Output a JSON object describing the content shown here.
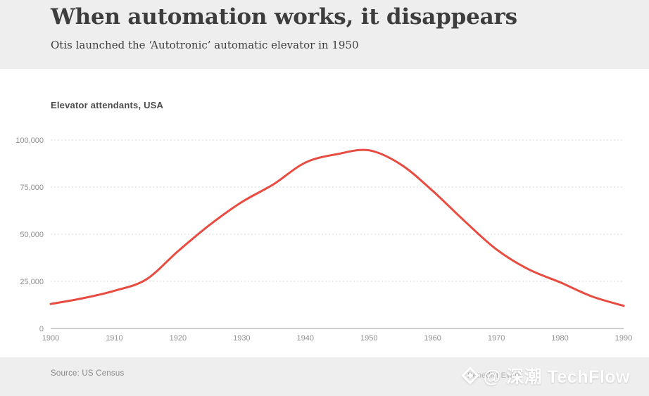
{
  "header": {
    "title": "When automation works, it disappears",
    "subtitle": "Otis launched the ‘Autotronic’ automatic elevator in 1950"
  },
  "chart": {
    "label": "Elevator attendants, USA"
  },
  "chart_data": {
    "type": "line",
    "title": "Elevator attendants, USA",
    "series_name": "Elevator attendants, USA",
    "x": [
      1900,
      1905,
      1910,
      1915,
      1920,
      1925,
      1930,
      1935,
      1940,
      1945,
      1950,
      1955,
      1960,
      1965,
      1970,
      1975,
      1980,
      1985,
      1990
    ],
    "values": [
      13000,
      16000,
      20000,
      26000,
      41000,
      55000,
      67000,
      76500,
      88000,
      92500,
      94500,
      87000,
      73000,
      57000,
      42000,
      31500,
      24500,
      17000,
      12000
    ],
    "xlabel": "",
    "ylabel": "",
    "xlim": [
      1900,
      1990
    ],
    "ylim": [
      0,
      100000
    ],
    "x_ticks": [
      1900,
      1910,
      1920,
      1930,
      1940,
      1950,
      1960,
      1970,
      1980,
      1990
    ],
    "x_tick_labels": [
      "1900",
      "1910",
      "1920",
      "1930",
      "1940",
      "1950",
      "1960",
      "1970",
      "1980",
      "1990"
    ],
    "y_ticks": [
      0,
      25000,
      50000,
      75000,
      100000
    ],
    "y_tick_labels": [
      "0",
      "25,000",
      "50,000",
      "75,000",
      "100,000"
    ],
    "grid": "horizontal-dotted",
    "legend": "none",
    "line_color": "#e84c41",
    "peak": {
      "year": 1950,
      "value": 94500
    }
  },
  "footer": {
    "source": "Source: US Census",
    "attribution": "Benedict Evans",
    "watermark": {
      "icon": "techflow-diamond-logo",
      "text": "@ 深潮 TechFlow"
    }
  },
  "colors": {
    "header_bg": "#eeeeee",
    "footer_bg": "#eeeeee",
    "plot_bg": "#ffffff",
    "line": "#e84c41",
    "gridline": "#dadada",
    "axis": "#9b9b9b",
    "tick_text": "#8f8f8f",
    "title_text": "#3d3d3d"
  }
}
